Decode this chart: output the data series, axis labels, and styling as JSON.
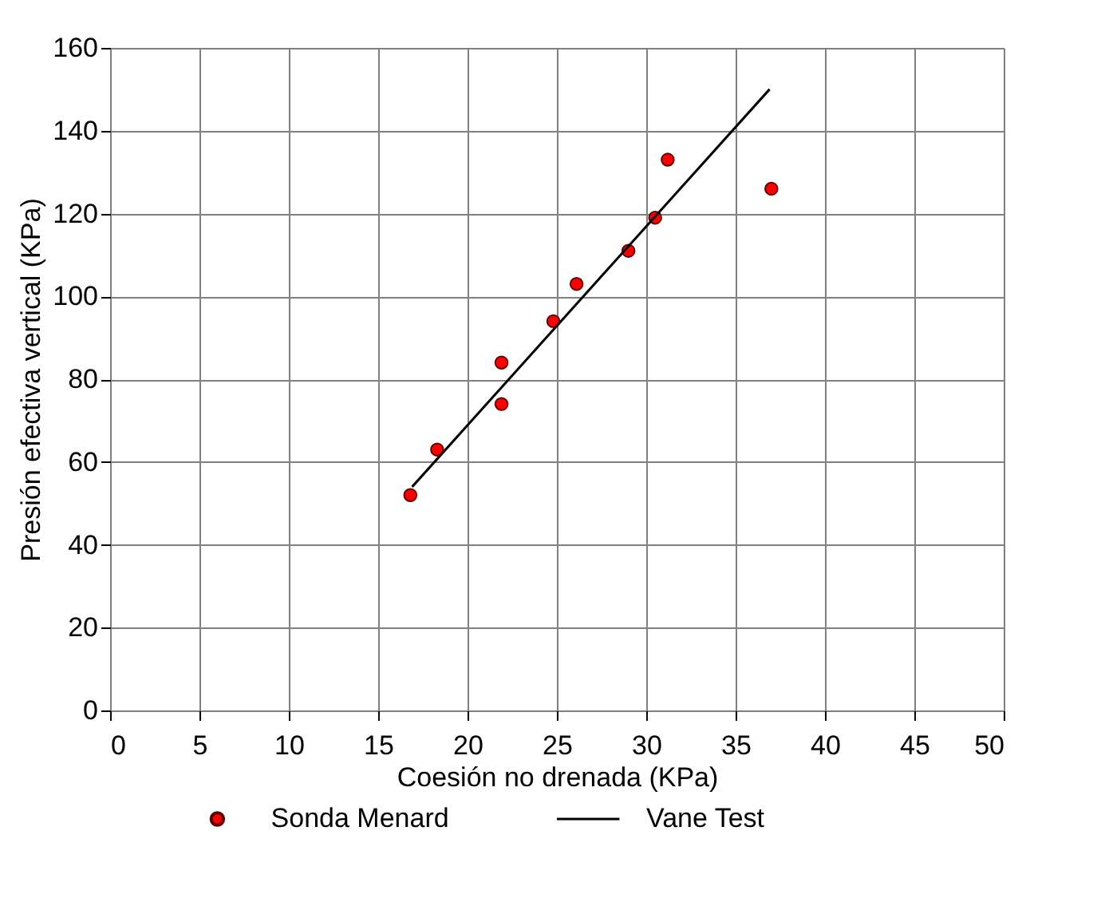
{
  "chart_data": {
    "type": "scatter",
    "xlabel": "Coesión no drenada (KPa)",
    "ylabel": "Presión efectiva vertical (KPa)",
    "xlim": [
      0,
      50
    ],
    "xticks": [
      0,
      5,
      10,
      15,
      20,
      25,
      30,
      35,
      40,
      45,
      50
    ],
    "ylim": [
      0,
      160
    ],
    "yticks": [
      0,
      20,
      40,
      60,
      80,
      100,
      120,
      140,
      160
    ],
    "grid": true,
    "legend": "bottom",
    "series": [
      {
        "name": "Sonda Menard",
        "marker": "circle",
        "color": "#ff0000",
        "x": [
          16.8,
          18.3,
          21.9,
          21.9,
          24.8,
          26.1,
          29,
          30.5,
          31.2,
          37
        ],
        "values": [
          52,
          63,
          74,
          84,
          94,
          103,
          111,
          119,
          133,
          126
        ]
      },
      {
        "name": "Vane Test",
        "type": "line",
        "color": "#000000",
        "x": [
          16.9,
          36.9
        ],
        "values": [
          54,
          150
        ]
      }
    ]
  }
}
